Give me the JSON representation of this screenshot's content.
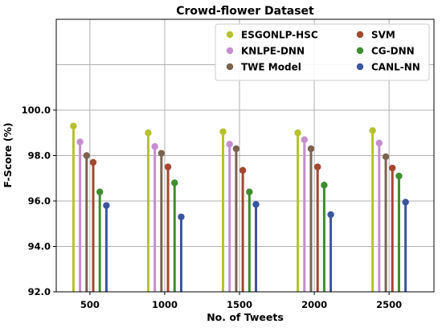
{
  "chart_data": {
    "type": "lollipop",
    "title": "Crowd-flower Dataset",
    "xlabel": "No. of Tweets",
    "ylabel": "F-Score (%)",
    "categories": [
      "500",
      "1000",
      "1500",
      "2000",
      "2500"
    ],
    "ylim": [
      92.0,
      104.0
    ],
    "yticks": [
      "92.0",
      "94.0",
      "96.0",
      "98.0",
      "100.0"
    ],
    "grid": true,
    "legend_position": "top-right",
    "series": [
      {
        "name": "ESGONLP-HSC",
        "color": "#b5c22e",
        "values": [
          99.3,
          99.0,
          99.05,
          99.0,
          99.1
        ]
      },
      {
        "name": "KNLPE-DNN",
        "color": "#c58ed0",
        "values": [
          98.6,
          98.4,
          98.5,
          98.7,
          98.55
        ]
      },
      {
        "name": "TWE Model",
        "color": "#7a6350",
        "values": [
          98.0,
          98.1,
          98.3,
          98.3,
          97.95
        ]
      },
      {
        "name": "SVM",
        "color": "#a3472e",
        "values": [
          97.7,
          97.5,
          97.35,
          97.5,
          97.45
        ]
      },
      {
        "name": "CG-DNN",
        "color": "#3e8e2e",
        "values": [
          96.4,
          96.8,
          96.4,
          96.7,
          97.1
        ]
      },
      {
        "name": "CANL-NN",
        "color": "#3a55a0",
        "values": [
          95.8,
          95.3,
          95.85,
          95.4,
          95.95
        ]
      }
    ]
  }
}
